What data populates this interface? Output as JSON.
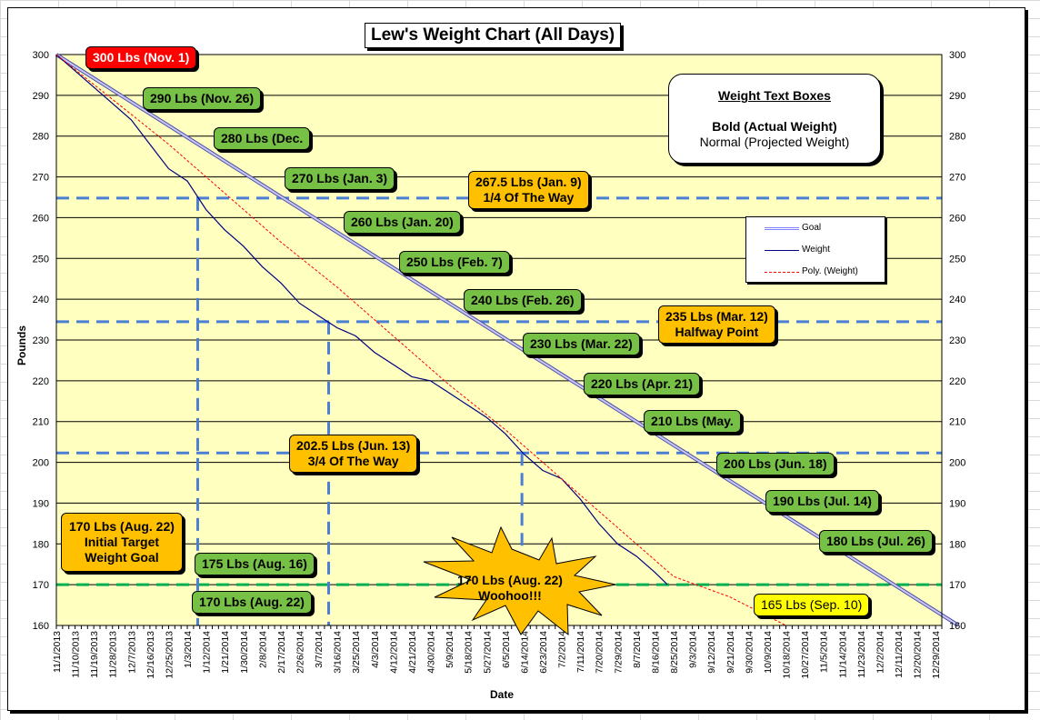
{
  "chart_data": {
    "type": "line",
    "title": "Lew's Weight Chart (All Days)",
    "xlabel": "Date",
    "ylabel": "Pounds",
    "ylim": [
      160,
      300
    ],
    "yticks": [
      160,
      170,
      180,
      190,
      200,
      210,
      220,
      230,
      240,
      250,
      260,
      270,
      280,
      290,
      300
    ],
    "xlim_days": [
      0,
      426
    ],
    "x_tick_labels": [
      "11/1/2013",
      "11/10/2013",
      "11/19/2013",
      "11/28/2013",
      "12/7/2013",
      "12/16/2013",
      "12/25/2013",
      "1/3/2014",
      "1/12/2014",
      "1/21/2014",
      "1/30/2014",
      "2/8/2014",
      "2/17/2014",
      "2/26/2014",
      "3/7/2014",
      "3/16/2014",
      "3/25/2014",
      "4/3/2014",
      "4/12/2014",
      "4/21/2014",
      "4/30/2014",
      "5/9/2014",
      "5/18/2014",
      "5/27/2014",
      "6/5/2014",
      "6/14/2014",
      "6/23/2014",
      "7/2/2014",
      "7/11/2014",
      "7/20/2014",
      "7/29/2014",
      "8/7/2014",
      "8/16/2014",
      "8/25/2014",
      "9/3/2014",
      "9/12/2014",
      "9/21/2014",
      "9/30/2014",
      "10/9/2014",
      "10/18/2014",
      "10/27/2014",
      "11/5/2014",
      "11/14/2014",
      "11/23/2014",
      "12/2/2014",
      "12/11/2014",
      "12/20/2014",
      "12/29/2014"
    ],
    "grid": true,
    "legend_position": "right",
    "series": [
      {
        "name": "Goal",
        "color": "#9999ff",
        "x": [
          "11/1/2013",
          "1/9/2015"
        ],
        "y": [
          300,
          160
        ]
      },
      {
        "name": "Weight",
        "color": "#000080",
        "x": [
          "11/1/2013",
          "11/10/2013",
          "11/19/2013",
          "11/28/2013",
          "12/7/2013",
          "12/16/2013",
          "12/25/2013",
          "1/3/2014",
          "1/12/2014",
          "1/21/2014",
          "1/30/2014",
          "2/8/2014",
          "2/17/2014",
          "2/26/2014",
          "3/7/2014",
          "3/16/2014",
          "3/25/2014",
          "4/3/2014",
          "4/12/2014",
          "4/21/2014",
          "4/30/2014",
          "5/9/2014",
          "5/18/2014",
          "5/27/2014",
          "6/5/2014",
          "6/14/2014",
          "6/23/2014",
          "7/2/2014",
          "7/11/2014",
          "7/20/2014",
          "7/29/2014",
          "8/7/2014",
          "8/16/2014",
          "8/22/2014"
        ],
        "y": [
          300,
          296,
          292,
          288,
          284,
          278,
          272,
          269,
          262,
          257,
          253,
          248,
          244,
          239,
          236,
          233,
          231,
          227,
          224,
          221,
          220,
          217,
          214,
          211,
          207,
          202,
          198,
          196,
          191,
          185,
          180,
          177,
          173,
          170
        ]
      },
      {
        "name": "Poly. (Weight)",
        "color": "#ff0000",
        "x": [
          "11/1/2013",
          "11/28/2013",
          "12/25/2013",
          "1/21/2014",
          "2/17/2014",
          "3/16/2014",
          "4/12/2014",
          "5/9/2014",
          "6/5/2014",
          "7/2/2014",
          "7/29/2014",
          "8/25/2014",
          "9/21/2014",
          "10/18/2014"
        ],
        "y": [
          300,
          289,
          278,
          266,
          254,
          243,
          231,
          219,
          208,
          196,
          184,
          172,
          167,
          160
        ]
      }
    ],
    "reference_lines": [
      {
        "value": 264.8,
        "color": "#4a7fd4"
      },
      {
        "value": 234.5,
        "color": "#4a7fd4"
      },
      {
        "value": 202.3,
        "color": "#4a7fd4"
      },
      {
        "value": 170,
        "color": "#00b050"
      }
    ],
    "vertical_reference_lines": [
      {
        "date": "1/8/2014",
        "from": 264.8
      },
      {
        "date": "3/12/2014",
        "from": 234.5
      },
      {
        "date": "6/13/2014",
        "from": 202.3
      }
    ]
  },
  "callouts": {
    "c300": "300 Lbs (Nov. 1)",
    "c290": "290 Lbs (Nov. 26)",
    "c280": "280 Lbs (Dec.",
    "c270": "270 Lbs (Jan. 3)",
    "c260": "260 Lbs (Jan. 20)",
    "c250": "250 Lbs (Feb. 7)",
    "c240": "240 Lbs (Feb. 26)",
    "c230": "230 Lbs (Mar. 22)",
    "c220": "220 Lbs (Apr. 21)",
    "c210": "210 Lbs (May.",
    "c200": "200 Lbs (Jun. 18)",
    "c190": "190 Lbs (Jul. 14)",
    "c180": "180 Lbs (Jul. 26)",
    "c175": "175 Lbs (Aug. 16)",
    "c170": "170 Lbs (Aug. 22)",
    "c165": "165 Lbs (Sep. 10)",
    "q1_line1": "267.5 Lbs (Jan. 9)",
    "q1_line2": "1/4 Of The Way",
    "half_line1": "235 Lbs (Mar. 12)",
    "half_line2": "Halfway Point",
    "q3_line1": "202.5 Lbs (Jun. 13)",
    "q3_line2": "3/4 Of The Way",
    "target_line1": "170 Lbs (Aug. 22)",
    "target_line2": "Initial Target",
    "target_line3": "Weight Goal",
    "star_line1": "170 Lbs (Aug. 22)",
    "star_line2": "Woohoo!!!"
  },
  "info_box": {
    "title": "Weight Text Boxes",
    "line1": "Bold (Actual Weight)",
    "line2": "Normal (Projected Weight)"
  },
  "legend": {
    "goal": "Goal",
    "weight": "Weight",
    "poly": "Poly. (Weight)"
  },
  "colors": {
    "plot_bg": "#ffffc0",
    "green_box": "#77c046",
    "orange_box": "#ffc000",
    "red_box": "#ff0000",
    "yellow_box": "#ffff00"
  }
}
